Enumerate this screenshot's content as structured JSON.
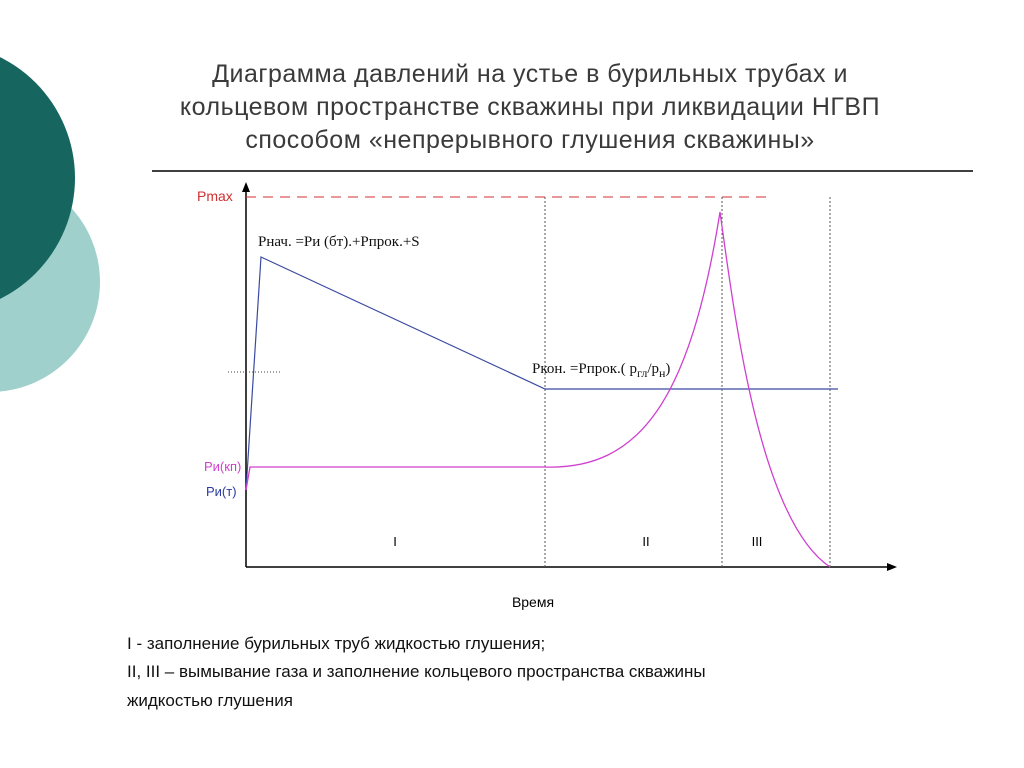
{
  "title": {
    "lines": [
      "Диаграмма давлений на устье в бурильных трубах и",
      "кольцевом пространстве скважины при ликвидации НГВП",
      "способом «непрерывного глушения скважины»"
    ]
  },
  "diagram": {
    "pmax": "Pmax",
    "p_start": "Рнач. =Ри (бт).+Рпрок.+S",
    "p_end": {
      "main": "Ркон. =Рпрок.( р",
      "sub1": "гл",
      "mid": "/р",
      "sub2": "н",
      "close": ")"
    },
    "p_annulus": "Ри(кп)",
    "p_tubing": "Ри(т)",
    "x_axis": "Время",
    "phases": [
      "I",
      "II",
      "III"
    ]
  },
  "notes": [
    "I - заполнение бурильных труб жидкостью глушения;",
    "II, III – вымывание газа и заполнение кольцевого пространства  скважины",
    "жидкостью глушения"
  ]
}
